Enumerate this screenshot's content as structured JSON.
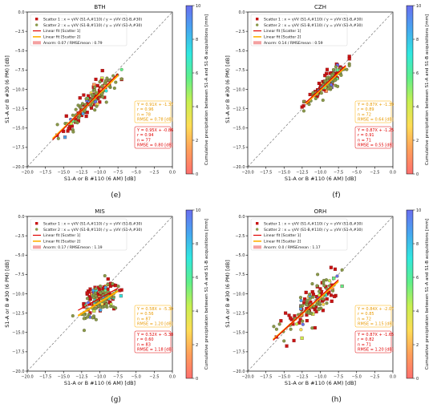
{
  "colormap": [
    "#ff6f6f",
    "#ff9f5a",
    "#ffdd55",
    "#c8f050",
    "#5ff08a",
    "#30e8e0",
    "#46a8f0",
    "#6a6ef0"
  ],
  "chart_data": [
    {
      "type": "scatter",
      "title": "BTH",
      "sublabel": "(e)",
      "xlabel": "S1-A or B #110 (6 AM) [dB]",
      "ylabel": "S1-A or B #30 (6 PM) [dB]",
      "xlim": [
        -20,
        0
      ],
      "ylim": [
        -20,
        0
      ],
      "xticks": [
        "−20.0",
        "−17.5",
        "−15.0",
        "−12.5",
        "−10.0",
        "−7.5",
        "−5.0",
        "−2.5",
        "0.0"
      ],
      "yticks": [
        "−20.0",
        "−17.5",
        "−15.0",
        "−12.5",
        "−10.0",
        "−7.5",
        "−5.0",
        "−2.5",
        "0.0"
      ],
      "colorbar": {
        "label": "Cumulative precipitation between S1-A and S1-B acquisitions [mm]",
        "ticks": [
          "0",
          "2",
          "4",
          "6",
          "8",
          "10"
        ]
      },
      "legend": [
        "Scatter 1 : x = γVV (S1-A,#110) / y = γVV (S1-B,#30)",
        "Scatter 2 : x = γVV (S1-B,#110) / y = γVV (S1-A,#30)",
        "Linear fit [Scatter 1]",
        "Linear fit [Scatter 2]",
        "Anorm: 0.07 / RMSEmean : 0.79"
      ],
      "stats1": [
        "Y = 0.95X + -0.86",
        "r = 0.94",
        "n = 77",
        "RMSE = 0.80 [dB]"
      ],
      "stats2": [
        "Y = 0.91X + -1.37",
        "r = 0.96",
        "n = 78",
        "RMSE = 0.78 [dB]"
      ],
      "fit1": {
        "slope": 0.95,
        "intercept": -0.86,
        "x_range": [
          -16.5,
          -7.5
        ]
      },
      "fit2": {
        "slope": 0.91,
        "intercept": -1.37,
        "x_range": [
          -16.5,
          -7.5
        ]
      },
      "x_center": -11.0,
      "x_spread": 2.1,
      "noise": 0.8,
      "seed": 11
    },
    {
      "type": "scatter",
      "title": "CZH",
      "sublabel": "(f)",
      "xlabel": "S1-A or B #110 (6 AM) [dB]",
      "ylabel": "S1-A or B #30 (6 PM) [dB]",
      "xlim": [
        -20,
        0
      ],
      "ylim": [
        -20,
        0
      ],
      "xticks": [
        "−20.0",
        "−17.5",
        "−15.0",
        "−12.5",
        "−10.0",
        "−7.5",
        "−5.0",
        "−2.5",
        "0.0"
      ],
      "yticks": [
        "−20.0",
        "−17.5",
        "−15.0",
        "−12.5",
        "−10.0",
        "−7.5",
        "−5.0",
        "−2.5",
        "0.0"
      ],
      "colorbar": {
        "label": "Cumulative precipitation between S1-A and S1-B acquisitions [mm]",
        "ticks": [
          "0",
          "2",
          "4",
          "6",
          "8",
          "10"
        ]
      },
      "legend": [
        "Scatter 1 : x = γVV (S1-A,#110) / y = γVV (S1-B,#30)",
        "Scatter 2 : x = γVV (S1-B,#110) / y = γVV (S1-A,#30)",
        "Linear fit [Scatter 1]",
        "Linear fit [Scatter 2]",
        "Anorm: 0.14 / RMSEmean : 0.59"
      ],
      "stats1": [
        "Y = 0.87X + -1.25",
        "r = 0.91",
        "n = 71",
        "RMSE = 0.55 [dB]"
      ],
      "stats2": [
        "Y = 0.87X + -1.39",
        "r = 0.89",
        "n = 72",
        "RMSE = 0.64 [dB]"
      ],
      "fit1": {
        "slope": 0.87,
        "intercept": -1.25,
        "x_range": [
          -12.0,
          -6.5
        ]
      },
      "fit2": {
        "slope": 0.87,
        "intercept": -1.39,
        "x_range": [
          -12.0,
          -6.5
        ]
      },
      "x_center": -9.0,
      "x_spread": 1.3,
      "noise": 0.55,
      "seed": 23
    },
    {
      "type": "scatter",
      "title": "MIS",
      "sublabel": "(g)",
      "xlabel": "S1-A or B #110 (6 AM) [dB]",
      "ylabel": "S1-A or B #30 (6 PM) [dB]",
      "xlim": [
        -20,
        0
      ],
      "ylim": [
        -20,
        0
      ],
      "xticks": [
        "−20.0",
        "−17.5",
        "−15.0",
        "−12.5",
        "−10.0",
        "−7.5",
        "−5.0",
        "−2.5",
        "0.0"
      ],
      "yticks": [
        "−20.0",
        "−17.5",
        "−15.0",
        "−12.5",
        "−10.0",
        "−7.5",
        "−5.0",
        "−2.5",
        "0.0"
      ],
      "colorbar": {
        "label": "Cumulative precipitation between S1-A and S1-B acquisitions [mm]",
        "ticks": [
          "0",
          "2",
          "4",
          "6",
          "8",
          "10"
        ]
      },
      "legend": [
        "Scatter 1 : x = γVV (S1-A,#110) / y = γVV (S1-B,#30)",
        "Scatter 2 : x = γVV (S1-B,#110) / y = γVV (S1-A,#30)",
        "Linear fit [Scatter 1]",
        "Linear fit [Scatter 2]",
        "Anorm: 0.17 / RMSEmean : 1.19"
      ],
      "stats1": [
        "Y = 0.52X + -5.38",
        "r = 0.60",
        "n = 83",
        "RMSE = 1.18 [dB]"
      ],
      "stats2": [
        "Y = 0.58X + -5.30",
        "r = 0.56",
        "n = 87",
        "RMSE = 1.20 [dB]"
      ],
      "fit1": {
        "slope": 0.52,
        "intercept": -5.38,
        "x_range": [
          -13.0,
          -7.5
        ]
      },
      "fit2": {
        "slope": 0.58,
        "intercept": -5.3,
        "x_range": [
          -13.0,
          -7.5
        ]
      },
      "x_center": -10.0,
      "x_spread": 1.2,
      "noise": 1.0,
      "seed": 37
    },
    {
      "type": "scatter",
      "title": "ORH",
      "sublabel": "(h)",
      "xlabel": "S1-A or B #110 (6 AM) [dB]",
      "ylabel": "S1-A or B #30 (6 PM) [dB]",
      "xlim": [
        -20,
        0
      ],
      "ylim": [
        -20,
        0
      ],
      "xticks": [
        "−20.0",
        "−17.5",
        "−15.0",
        "−12.5",
        "−10.0",
        "−7.5",
        "−5.0",
        "−2.5",
        "0.0"
      ],
      "yticks": [
        "−20.0",
        "−17.5",
        "−15.0",
        "−12.5",
        "−10.0",
        "−7.5",
        "−5.0",
        "−2.5",
        "0.0"
      ],
      "colorbar": {
        "label": "Cumulative precipitation between S1-A and S1-B acquisitions [mm]",
        "ticks": [
          "0",
          "2",
          "4",
          "6",
          "8",
          "10"
        ]
      },
      "legend": [
        "Scatter 1 : x = γVV (S1-A,#110) / y = γVV (S1-B,#30)",
        "Scatter 2 : x = γVV (S1-B,#110) / y = γVV (S1-A,#30)",
        "Linear fit [Scatter 1]",
        "Linear fit [Scatter 2]",
        "Anorm: 0.0 / RMSEmean : 1.17"
      ],
      "stats1": [
        "Y = 0.87X + -1.65",
        "r = 0.82",
        "n = 71",
        "RMSE = 1.20 [dB]"
      ],
      "stats2": [
        "Y = 0.84X + -2.07",
        "r = 0.85",
        "n = 72",
        "RMSE = 1.15 [dB]"
      ],
      "fit1": {
        "slope": 0.87,
        "intercept": -1.65,
        "x_range": [
          -16.5,
          -7.5
        ]
      },
      "fit2": {
        "slope": 0.84,
        "intercept": -2.07,
        "x_range": [
          -16.5,
          -7.5
        ]
      },
      "x_center": -11.0,
      "x_spread": 2.2,
      "noise": 1.2,
      "seed": 53
    }
  ]
}
